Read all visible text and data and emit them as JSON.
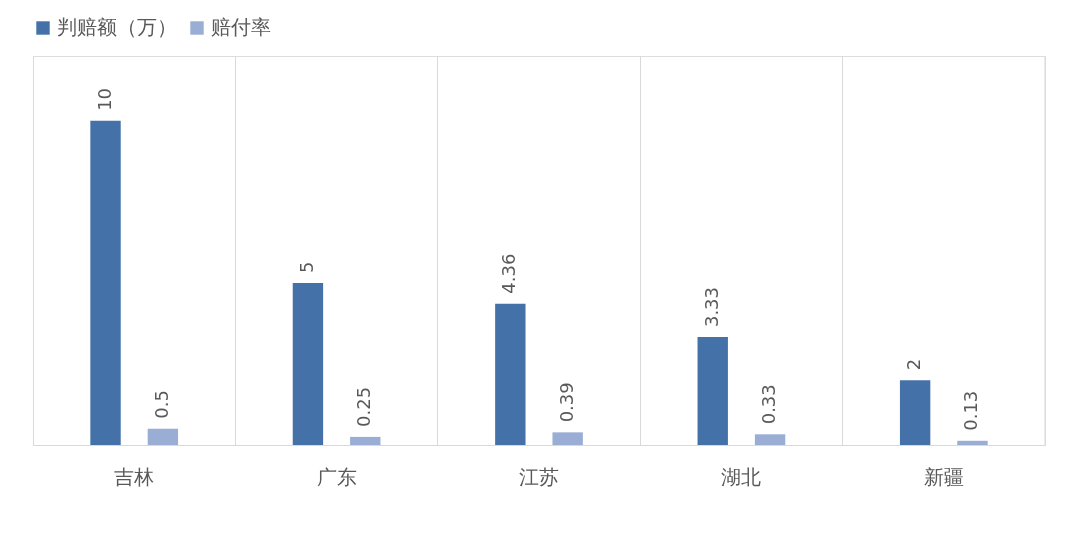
{
  "chart_data": {
    "type": "bar",
    "categories": [
      "吉林",
      "广东",
      "江苏",
      "湖北",
      "新疆"
    ],
    "series": [
      {
        "name": "判赔额（万）",
        "color": "#4472a8",
        "values": [
          10,
          5,
          4.36,
          3.33,
          2
        ]
      },
      {
        "name": "赔付率",
        "color": "#9aadd4",
        "values": [
          0.5,
          0.25,
          0.39,
          0.33,
          0.13
        ]
      }
    ],
    "ylim": [
      0,
      12
    ],
    "tick_labels": "x",
    "data_labels": true,
    "grid": "x",
    "legend": "top"
  }
}
